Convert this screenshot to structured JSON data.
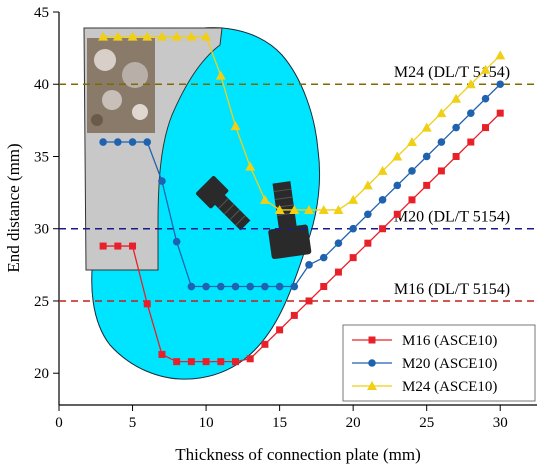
{
  "chart_data": {
    "type": "line",
    "xlabel": "Thickness of connection plate (mm)",
    "ylabel": "End distance (mm)",
    "xlim": [
      0,
      32.5
    ],
    "ylim": [
      17.8,
      45
    ],
    "xticks": [
      0,
      5,
      10,
      15,
      20,
      25,
      30
    ],
    "yticks": [
      20,
      25,
      30,
      35,
      40,
      45
    ],
    "legend_position": "bottom-right",
    "grid": false,
    "series": [
      {
        "name": "M16 (ASCE10)",
        "color": "#e8202a",
        "marker": "square",
        "points": [
          [
            3,
            28.8
          ],
          [
            4,
            28.8
          ],
          [
            5,
            28.8
          ],
          [
            6,
            24.8
          ],
          [
            7,
            21.3
          ],
          [
            8,
            20.8
          ],
          [
            9,
            20.8
          ],
          [
            10,
            20.8
          ],
          [
            11,
            20.8
          ],
          [
            12,
            20.8
          ],
          [
            13,
            21.0
          ],
          [
            14,
            22.0
          ],
          [
            15,
            23.0
          ],
          [
            16,
            24.0
          ],
          [
            17,
            25.0
          ],
          [
            18,
            26.0
          ],
          [
            19,
            27.0
          ],
          [
            20,
            28.0
          ],
          [
            21,
            29.0
          ],
          [
            22,
            30.0
          ],
          [
            23,
            31.0
          ],
          [
            24,
            32.0
          ],
          [
            25,
            33.0
          ],
          [
            26,
            34.0
          ],
          [
            27,
            35.0
          ],
          [
            28,
            36.0
          ],
          [
            29,
            37.0
          ],
          [
            30,
            38.0
          ]
        ]
      },
      {
        "name": "M20 (ASCE10)",
        "color": "#1f62b0",
        "marker": "circle",
        "points": [
          [
            3,
            36.0
          ],
          [
            4,
            36.0
          ],
          [
            5,
            36.0
          ],
          [
            6,
            36.0
          ],
          [
            7,
            33.3
          ],
          [
            8,
            29.1
          ],
          [
            9,
            26.0
          ],
          [
            10,
            26.0
          ],
          [
            11,
            26.0
          ],
          [
            12,
            26.0
          ],
          [
            13,
            26.0
          ],
          [
            14,
            26.0
          ],
          [
            15,
            26.0
          ],
          [
            16,
            26.0
          ],
          [
            17,
            27.5
          ],
          [
            18,
            28.0
          ],
          [
            19,
            29.0
          ],
          [
            20,
            30.0
          ],
          [
            21,
            31.0
          ],
          [
            22,
            32.0
          ],
          [
            23,
            33.0
          ],
          [
            24,
            34.0
          ],
          [
            25,
            35.0
          ],
          [
            26,
            36.0
          ],
          [
            27,
            37.0
          ],
          [
            28,
            38.0
          ],
          [
            29,
            39.0
          ],
          [
            30,
            40.0
          ]
        ]
      },
      {
        "name": "M24 (ASCE10)",
        "color": "#f0cf14",
        "marker": "triangle",
        "points": [
          [
            3,
            43.3
          ],
          [
            4,
            43.3
          ],
          [
            5,
            43.3
          ],
          [
            6,
            43.3
          ],
          [
            7,
            43.3
          ],
          [
            8,
            43.3
          ],
          [
            9,
            43.3
          ],
          [
            10,
            43.3
          ],
          [
            11,
            40.6
          ],
          [
            12,
            37.1
          ],
          [
            13,
            34.3
          ],
          [
            14,
            32.0
          ],
          [
            15,
            31.3
          ],
          [
            16,
            31.3
          ],
          [
            17,
            31.3
          ],
          [
            18,
            31.3
          ],
          [
            19,
            31.3
          ],
          [
            20,
            32.0
          ],
          [
            21,
            33.0
          ],
          [
            22,
            34.0
          ],
          [
            23,
            35.0
          ],
          [
            24,
            36.0
          ],
          [
            25,
            37.0
          ],
          [
            26,
            38.0
          ],
          [
            27,
            39.0
          ],
          [
            28,
            40.0
          ],
          [
            29,
            41.0
          ],
          [
            30,
            42.0
          ]
        ]
      }
    ],
    "reference_lines": [
      {
        "label": "M24 (DL/T 5154)",
        "y": 40,
        "color": "#7f6a00"
      },
      {
        "label": "M20 (DL/T 5154)",
        "y": 30,
        "color": "#1a1a8c"
      },
      {
        "label": "M16 (DL/T 5154)",
        "y": 25,
        "color": "#c0201b"
      }
    ]
  },
  "illustration": {
    "background_region_color": "#00e5ff",
    "photo_panel_color": "#c8c8c8",
    "bolt_color": "#2a2a2a"
  }
}
